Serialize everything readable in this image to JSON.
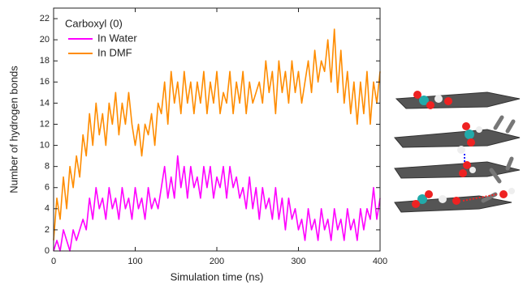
{
  "chart_data": {
    "type": "line",
    "legend_title": "Carboxyl (0)",
    "x_label": "Simulation time (ns)",
    "y_label": "Number of hydrogen bonds",
    "x": [
      0,
      4,
      8,
      12,
      16,
      20,
      24,
      28,
      32,
      36,
      40,
      44,
      48,
      52,
      56,
      60,
      64,
      68,
      72,
      76,
      80,
      84,
      88,
      92,
      96,
      100,
      104,
      108,
      112,
      116,
      120,
      124,
      128,
      132,
      136,
      140,
      144,
      148,
      152,
      156,
      160,
      164,
      168,
      172,
      176,
      180,
      184,
      188,
      192,
      196,
      200,
      204,
      208,
      212,
      216,
      220,
      224,
      228,
      232,
      236,
      240,
      244,
      248,
      252,
      256,
      260,
      264,
      268,
      272,
      276,
      280,
      284,
      288,
      292,
      296,
      300,
      304,
      308,
      312,
      316,
      320,
      324,
      328,
      332,
      336,
      340,
      344,
      348,
      352,
      356,
      360,
      364,
      368,
      372,
      376,
      380,
      384,
      388,
      392,
      396,
      400
    ],
    "series": [
      {
        "name": "In DMF",
        "color": "#ff8c00",
        "values": [
          1,
          5,
          3,
          7,
          4,
          8,
          6,
          9,
          7,
          11,
          9,
          13,
          10,
          14,
          11,
          13,
          10,
          14,
          12,
          15,
          11,
          14,
          12,
          15,
          12,
          10,
          12,
          9,
          12,
          11,
          13,
          10,
          14,
          13,
          16,
          12,
          17,
          14,
          16,
          13,
          17,
          14,
          16,
          13,
          16,
          14,
          17,
          13,
          16,
          14,
          17,
          13,
          15,
          14,
          17,
          13,
          16,
          14,
          17,
          13,
          16,
          14,
          15,
          16,
          14,
          18,
          15,
          17,
          13,
          18,
          15,
          17,
          14,
          18,
          15,
          17,
          14,
          16,
          18,
          15,
          19,
          16,
          18,
          17,
          20,
          16,
          21,
          15,
          19,
          14,
          17,
          13,
          16,
          12,
          16,
          13,
          17,
          12,
          16,
          14,
          17
        ]
      },
      {
        "name": "In Water",
        "color": "#ff00ff",
        "values": [
          0,
          1,
          0,
          2,
          1,
          0,
          2,
          1,
          2,
          3,
          2,
          5,
          3,
          6,
          4,
          5,
          3,
          6,
          4,
          5,
          3,
          6,
          4,
          5,
          3,
          6,
          4,
          5,
          3,
          6,
          4,
          5,
          4,
          6,
          8,
          5,
          7,
          5,
          9,
          6,
          8,
          5,
          8,
          6,
          7,
          5,
          8,
          6,
          8,
          5,
          7,
          6,
          8,
          5,
          8,
          6,
          7,
          5,
          6,
          4,
          7,
          4,
          6,
          3,
          6,
          4,
          5,
          3,
          6,
          3,
          5,
          2,
          5,
          3,
          4,
          2,
          3,
          1,
          4,
          2,
          3,
          1,
          4,
          2,
          3,
          1,
          4,
          2,
          3,
          1,
          4,
          2,
          3,
          1,
          4,
          2,
          4,
          3,
          6,
          3,
          5
        ]
      }
    ],
    "xlim": [
      0,
      400
    ],
    "xticks": [
      0,
      100,
      200,
      300,
      400
    ],
    "ylim": [
      0,
      23
    ],
    "yticks": [
      0,
      2,
      4,
      6,
      8,
      10,
      12,
      14,
      16,
      18,
      20,
      22
    ]
  }
}
